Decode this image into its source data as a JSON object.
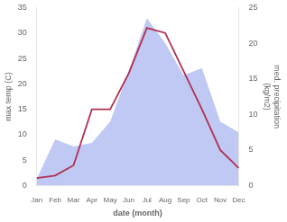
{
  "chart_data": {
    "type": "line",
    "categories": [
      "Jan",
      "Feb",
      "Mar",
      "Apr",
      "May",
      "Jun",
      "Jul",
      "Aug",
      "Sep",
      "Oct",
      "Nov",
      "Dec"
    ],
    "series": [
      {
        "type": "area",
        "color": "#c0c8f4",
        "axis": "y2",
        "values": [
          1.0,
          6.5,
          5.5,
          6.0,
          9.0,
          16.0,
          23.5,
          20.0,
          15.5,
          16.5,
          9.0,
          7.5
        ]
      },
      {
        "type": "line",
        "color": "#b03050",
        "values": [
          1.5,
          2.0,
          4.0,
          15.0,
          15.0,
          22.0,
          31.0,
          30.0,
          22.5,
          15.0,
          7.0,
          3.5
        ]
      }
    ],
    "xlabel": "date (month)",
    "ylabel": "max temp (C)",
    "y2label": "med. precipitation\n(kg/m2)",
    "ylim": [
      0,
      35
    ],
    "yticks": [
      0,
      5,
      10,
      15,
      20,
      25,
      30,
      35
    ],
    "y2lim": [
      0,
      25
    ],
    "y2ticks": [
      0,
      5,
      10,
      15,
      20,
      25
    ],
    "grid": false
  }
}
